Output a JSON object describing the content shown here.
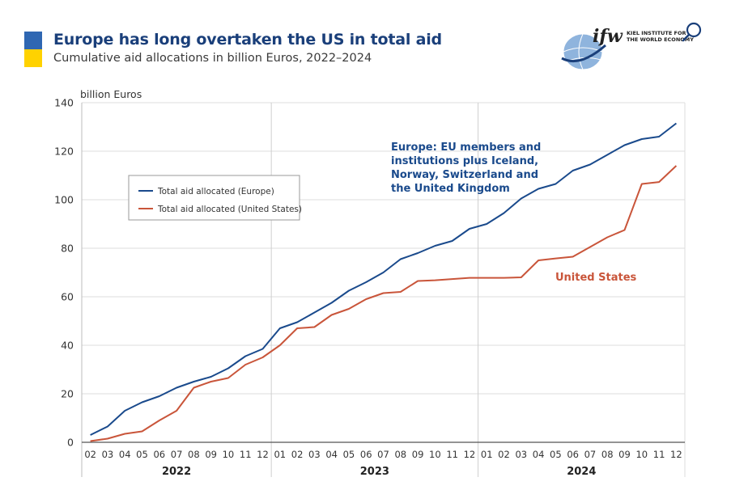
{
  "header": {
    "title": "Europe has long overtaken the US in total aid",
    "subtitle": "Cumulative aid allocations in billion Euros, 2022–2024"
  },
  "logo": {
    "text": "ifw",
    "sub_line1": "KIEL INSTITUTE FOR",
    "sub_line2": "THE WORLD ECONOMY"
  },
  "colors": {
    "europe": "#1a4a8c",
    "us": "#c9553a",
    "flag_blue": "#2f67b2",
    "flag_yellow": "#ffd200"
  },
  "chart_data": {
    "type": "line",
    "ylabel": "billion Euros",
    "ylim": [
      0,
      140
    ],
    "yticks": [
      0,
      20,
      40,
      60,
      80,
      100,
      120,
      140
    ],
    "grid": true,
    "legend_position": "upper-left",
    "x": [
      "2022-02",
      "2022-03",
      "2022-04",
      "2022-05",
      "2022-06",
      "2022-07",
      "2022-08",
      "2022-09",
      "2022-10",
      "2022-11",
      "2022-12",
      "2023-01",
      "2023-02",
      "2023-03",
      "2023-04",
      "2023-05",
      "2023-06",
      "2023-07",
      "2023-08",
      "2023-09",
      "2023-10",
      "2023-11",
      "2023-12",
      "2024-01",
      "2024-02",
      "2024-03",
      "2024-04",
      "2024-05",
      "2024-06",
      "2024-07",
      "2024-08",
      "2024-09",
      "2024-10",
      "2024-11",
      "2024-12"
    ],
    "month_labels": [
      "02",
      "03",
      "04",
      "05",
      "06",
      "07",
      "08",
      "09",
      "10",
      "11",
      "12",
      "01",
      "02",
      "03",
      "04",
      "05",
      "06",
      "07",
      "08",
      "09",
      "10",
      "11",
      "12",
      "01",
      "02",
      "03",
      "04",
      "05",
      "06",
      "07",
      "08",
      "09",
      "10",
      "11",
      "12"
    ],
    "years": [
      {
        "label": "2022",
        "months": 11
      },
      {
        "label": "2023",
        "months": 12
      },
      {
        "label": "2024",
        "months": 12
      }
    ],
    "series": [
      {
        "name": "Total aid allocated (Europe)",
        "color": "#1a4a8c",
        "values": [
          3,
          6.5,
          13,
          16.5,
          19,
          22.5,
          25,
          27,
          30.5,
          35.5,
          38.5,
          47,
          49.5,
          53.5,
          57.5,
          62.5,
          66,
          70,
          75.5,
          78,
          81,
          83,
          88,
          90,
          94.5,
          100.5,
          104.5,
          106.5,
          112,
          114.5,
          118.5,
          122.5,
          125,
          126,
          131.5
        ]
      },
      {
        "name": "Total aid allocated (United States)",
        "color": "#c9553a",
        "values": [
          0.5,
          1.5,
          3.5,
          4.5,
          9,
          13,
          22.5,
          25,
          26.5,
          32,
          35,
          40,
          47,
          47.5,
          52.5,
          55,
          59,
          61.5,
          62,
          66.5,
          66.8,
          67.3,
          67.8,
          67.8,
          67.8,
          68,
          75,
          75.8,
          76.5,
          80.5,
          84.5,
          87.5,
          106.5,
          107.3,
          114
        ]
      }
    ],
    "annotations": [
      {
        "text_lines": [
          "Europe: EU members and",
          "institutions plus Iceland,",
          "Norway, Switzerland and",
          "the United Kingdom"
        ],
        "color": "#1a4a8c"
      },
      {
        "text_lines": [
          "United States"
        ],
        "color": "#c9553a"
      }
    ]
  }
}
